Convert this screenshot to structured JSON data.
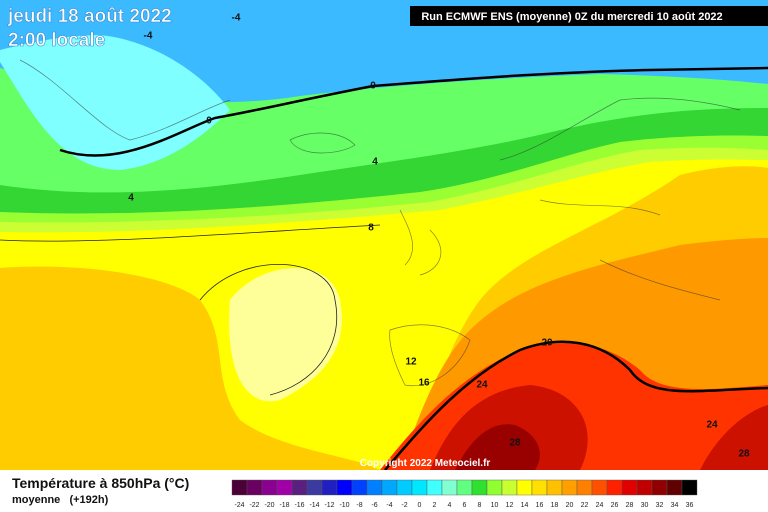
{
  "header": {
    "date": "jeudi 18 août 2022",
    "time": "2:00 locale",
    "run": "Run ECMWF ENS (moyenne) 0Z du mercredi 10 août 2022"
  },
  "copyright": "Copyright 2022 Meteociel.fr",
  "legend": {
    "title": "Température à 850hPa (°C)",
    "subtitle": "moyenne   (+192h)",
    "scale_labels": [
      -24,
      -22,
      -20,
      -18,
      -16,
      -14,
      -12,
      -10,
      -8,
      -6,
      -4,
      -2,
      0,
      2,
      4,
      6,
      8,
      10,
      12,
      14,
      16,
      18,
      20,
      22,
      24,
      26,
      28,
      30,
      32,
      34,
      36
    ],
    "scale_colors": [
      "#4b0036",
      "#6a0060",
      "#8a0090",
      "#a000a8",
      "#5a2080",
      "#3a3aa0",
      "#2020c0",
      "#0000ff",
      "#0040ff",
      "#0080ff",
      "#00a8ff",
      "#00ccff",
      "#00e8ff",
      "#40ffff",
      "#80ffd0",
      "#60ff80",
      "#30e030",
      "#90ff30",
      "#c8ff30",
      "#ffff00",
      "#ffe000",
      "#ffc000",
      "#ffa000",
      "#ff8000",
      "#ff5000",
      "#ff2000",
      "#e00000",
      "#c00000",
      "#900000",
      "#600000",
      "#000000"
    ]
  },
  "contour_labels": [
    -4,
    -4,
    0,
    0,
    4,
    4,
    8,
    12,
    16,
    20,
    24,
    24,
    28,
    28
  ]
}
